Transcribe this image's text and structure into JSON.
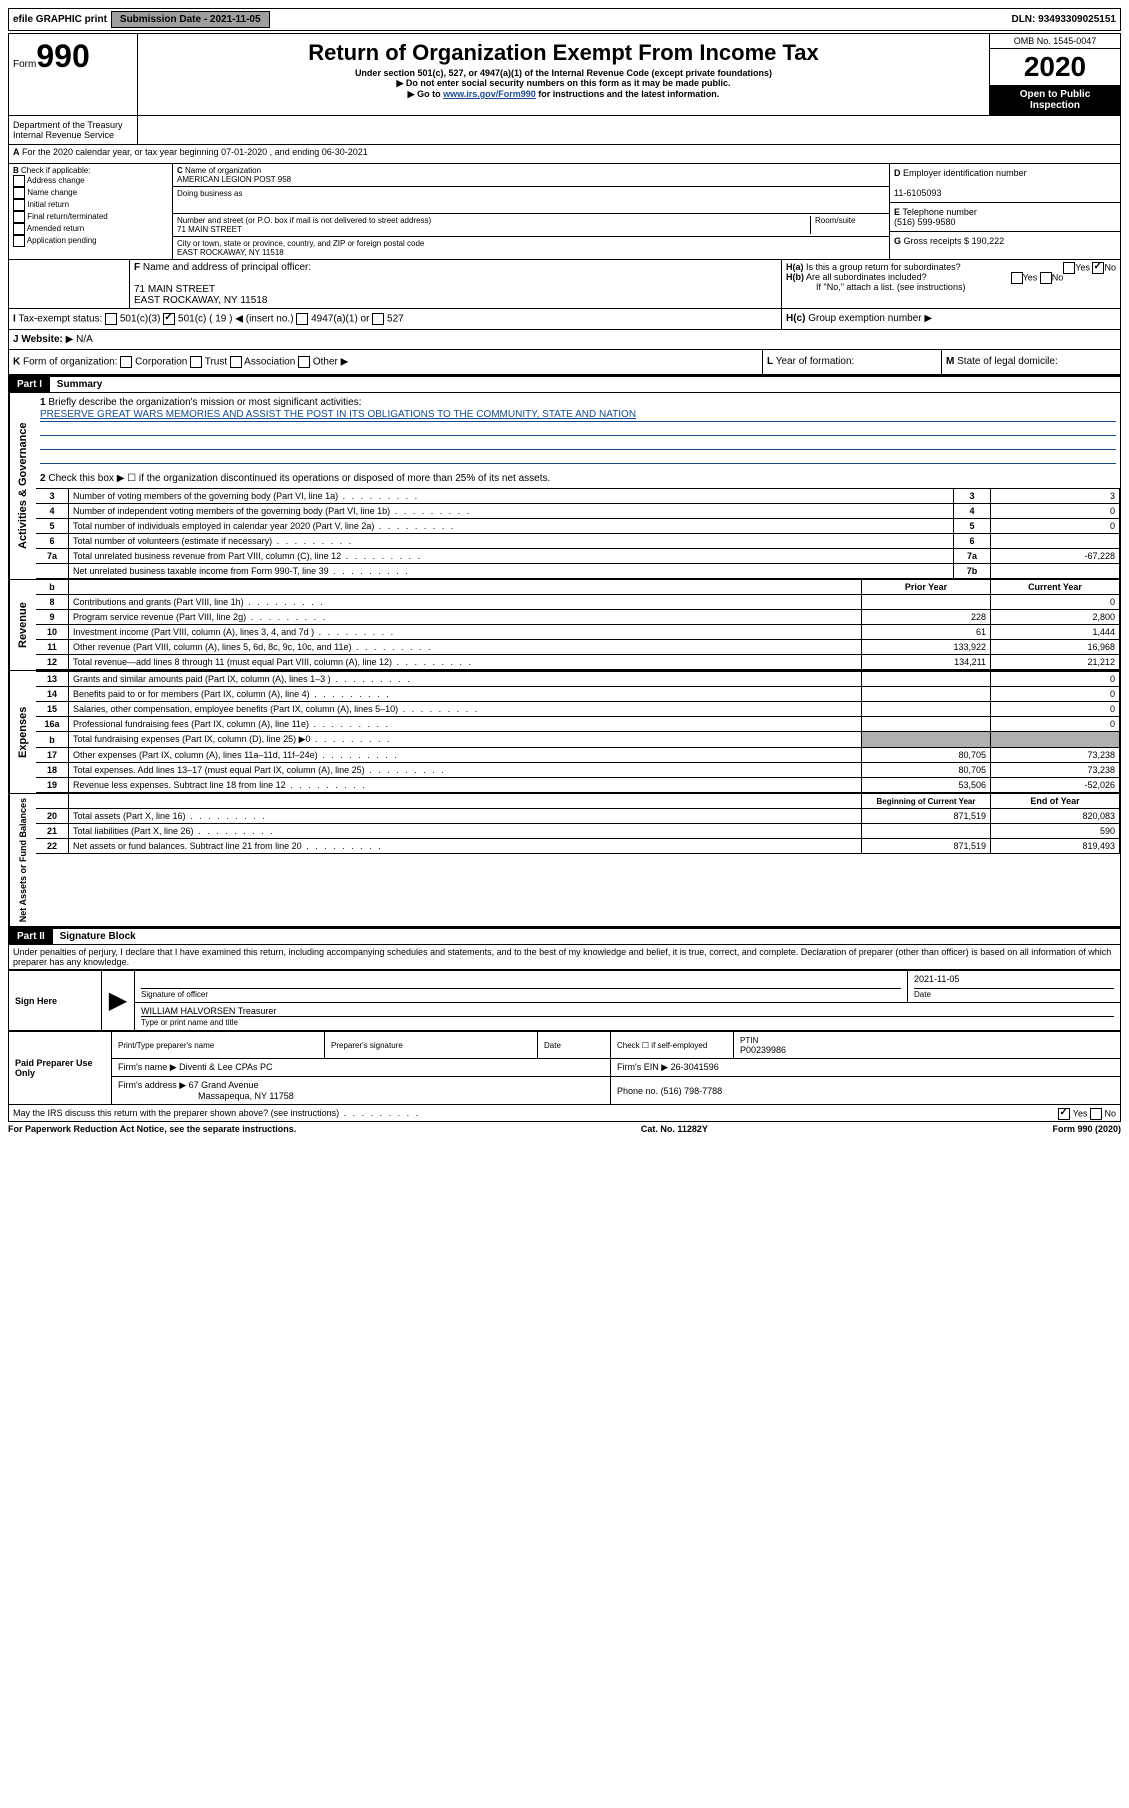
{
  "top": {
    "efile": "efile GRAPHIC print",
    "subdate_label": "Submission Date - ",
    "subdate": "2021-11-05",
    "dln": "DLN: 93493309025151"
  },
  "header": {
    "form": "Form",
    "num": "990",
    "title": "Return of Organization Exempt From Income Tax",
    "subtitle": "Under section 501(c), 527, or 4947(a)(1) of the Internal Revenue Code (except private foundations)",
    "note1": "Do not enter social security numbers on this form as it may be made public.",
    "note2_pre": "Go to ",
    "note2_link": "www.irs.gov/Form990",
    "note2_post": " for instructions and the latest information.",
    "omb": "OMB No. 1545-0047",
    "year": "2020",
    "inspection": "Open to Public Inspection",
    "dept1": "Department of the Treasury",
    "dept2": "Internal Revenue Service"
  },
  "a": {
    "line": "For the 2020 calendar year, or tax year beginning 07-01-2020   , and ending 06-30-2021"
  },
  "b": {
    "header": "Check if applicable:",
    "opts": [
      "Address change",
      "Name change",
      "Initial return",
      "Final return/terminated",
      "Amended return",
      "Application pending"
    ]
  },
  "c": {
    "name_label": "Name of organization",
    "name": "AMERICAN LEGION POST 958",
    "dba_label": "Doing business as",
    "addr_label": "Number and street (or P.O. box if mail is not delivered to street address)",
    "room_label": "Room/suite",
    "addr": "71 MAIN STREET",
    "city_label": "City or town, state or province, country, and ZIP or foreign postal code",
    "city": "EAST ROCKAWAY, NY  11518"
  },
  "d": {
    "label": "Employer identification number",
    "val": "11-6105093"
  },
  "e": {
    "label": "Telephone number",
    "val": "(516) 599-9580"
  },
  "g": {
    "label": "Gross receipts $",
    "val": "190,222"
  },
  "f": {
    "label": "Name and address of principal officer:",
    "addr1": "71 MAIN STREET",
    "addr2": "EAST ROCKAWAY, NY  11518"
  },
  "h": {
    "a": "Is this a group return for subordinates?",
    "b": "Are all subordinates included?",
    "bnote": "If \"No,\" attach a list. (see instructions)",
    "c": "Group exemption number"
  },
  "i": {
    "label": "Tax-exempt status:",
    "opts": [
      "501(c)(3)",
      "501(c) ( 19 )",
      "(insert no.)",
      "4947(a)(1) or",
      "527"
    ]
  },
  "j": {
    "label": "Website:",
    "val": "N/A"
  },
  "k": {
    "label": "Form of organization:",
    "opts": [
      "Corporation",
      "Trust",
      "Association",
      "Other"
    ]
  },
  "l": {
    "label": "Year of formation:"
  },
  "m": {
    "label": "State of legal domicile:"
  },
  "part1": {
    "label": "Part I",
    "title": "Summary",
    "q1": "Briefly describe the organization's mission or most significant activities:",
    "mission": "PRESERVE GREAT WARS MEMORIES AND ASSIST THE POST IN ITS OBLIGATIONS TO THE COMMUNITY, STATE AND NATION",
    "q2": "Check this box ▶ ☐  if the organization discontinued its operations or disposed of more than 25% of its net assets.",
    "rows_gov": [
      {
        "n": "3",
        "t": "Number of voting members of the governing body (Part VI, line 1a)",
        "b": "3",
        "v": "3"
      },
      {
        "n": "4",
        "t": "Number of independent voting members of the governing body (Part VI, line 1b)",
        "b": "4",
        "v": "0"
      },
      {
        "n": "5",
        "t": "Total number of individuals employed in calendar year 2020 (Part V, line 2a)",
        "b": "5",
        "v": "0"
      },
      {
        "n": "6",
        "t": "Total number of volunteers (estimate if necessary)",
        "b": "6",
        "v": ""
      },
      {
        "n": "7a",
        "t": "Total unrelated business revenue from Part VIII, column (C), line 12",
        "b": "7a",
        "v": "-67,228"
      },
      {
        "n": "",
        "t": "Net unrelated business taxable income from Form 990-T, line 39",
        "b": "7b",
        "v": ""
      }
    ],
    "col_prior": "Prior Year",
    "col_current": "Current Year",
    "rows_rev": [
      {
        "n": "8",
        "t": "Contributions and grants (Part VIII, line 1h)",
        "p": "",
        "c": "0"
      },
      {
        "n": "9",
        "t": "Program service revenue (Part VIII, line 2g)",
        "p": "228",
        "c": "2,800"
      },
      {
        "n": "10",
        "t": "Investment income (Part VIII, column (A), lines 3, 4, and 7d )",
        "p": "61",
        "c": "1,444"
      },
      {
        "n": "11",
        "t": "Other revenue (Part VIII, column (A), lines 5, 6d, 8c, 9c, 10c, and 11e)",
        "p": "133,922",
        "c": "16,968"
      },
      {
        "n": "12",
        "t": "Total revenue—add lines 8 through 11 (must equal Part VIII, column (A), line 12)",
        "p": "134,211",
        "c": "21,212"
      }
    ],
    "rows_exp": [
      {
        "n": "13",
        "t": "Grants and similar amounts paid (Part IX, column (A), lines 1–3 )",
        "p": "",
        "c": "0"
      },
      {
        "n": "14",
        "t": "Benefits paid to or for members (Part IX, column (A), line 4)",
        "p": "",
        "c": "0"
      },
      {
        "n": "15",
        "t": "Salaries, other compensation, employee benefits (Part IX, column (A), lines 5–10)",
        "p": "",
        "c": "0"
      },
      {
        "n": "16a",
        "t": "Professional fundraising fees (Part IX, column (A), line 11e)",
        "p": "",
        "c": "0"
      },
      {
        "n": "b",
        "t": "Total fundraising expenses (Part IX, column (D), line 25) ▶0",
        "p": "GRAY",
        "c": "GRAY"
      },
      {
        "n": "17",
        "t": "Other expenses (Part IX, column (A), lines 11a–11d, 11f–24e)",
        "p": "80,705",
        "c": "73,238"
      },
      {
        "n": "18",
        "t": "Total expenses. Add lines 13–17 (must equal Part IX, column (A), line 25)",
        "p": "80,705",
        "c": "73,238"
      },
      {
        "n": "19",
        "t": "Revenue less expenses. Subtract line 18 from line 12",
        "p": "53,506",
        "c": "-52,026"
      }
    ],
    "col_begin": "Beginning of Current Year",
    "col_end": "End of Year",
    "rows_net": [
      {
        "n": "20",
        "t": "Total assets (Part X, line 16)",
        "p": "871,519",
        "c": "820,083"
      },
      {
        "n": "21",
        "t": "Total liabilities (Part X, line 26)",
        "p": "",
        "c": "590"
      },
      {
        "n": "22",
        "t": "Net assets or fund balances. Subtract line 21 from line 20",
        "p": "871,519",
        "c": "819,493"
      }
    ]
  },
  "part2": {
    "label": "Part II",
    "title": "Signature Block",
    "decl": "Under penalties of perjury, I declare that I have examined this return, including accompanying schedules and statements, and to the best of my knowledge and belief, it is true, correct, and complete. Declaration of preparer (other than officer) is based on all information of which preparer has any knowledge."
  },
  "sign": {
    "label": "Sign Here",
    "sig_label": "Signature of officer",
    "date_label": "Date",
    "date": "2021-11-05",
    "name": "WILLIAM HALVORSEN  Treasurer",
    "name_label": "Type or print name and title"
  },
  "prep": {
    "label": "Paid Preparer Use Only",
    "print_label": "Print/Type preparer's name",
    "sig_label": "Preparer's signature",
    "date_label": "Date",
    "check_label": "Check ☐ if self-employed",
    "ptin_label": "PTIN",
    "ptin": "P00239986",
    "firm_label": "Firm's name  ▶",
    "firm": "Diventi & Lee CPAs PC",
    "ein_label": "Firm's EIN ▶",
    "ein": "26-3041596",
    "addr_label": "Firm's address ▶",
    "addr1": "67 Grand Avenue",
    "addr2": "Massapequa, NY  11758",
    "phone_label": "Phone no.",
    "phone": "(516) 798-7788",
    "discuss": "May the IRS discuss this return with the preparer shown above? (see instructions)"
  },
  "footer": {
    "left": "For Paperwork Reduction Act Notice, see the separate instructions.",
    "mid": "Cat. No. 11282Y",
    "right": "Form 990 (2020)"
  }
}
